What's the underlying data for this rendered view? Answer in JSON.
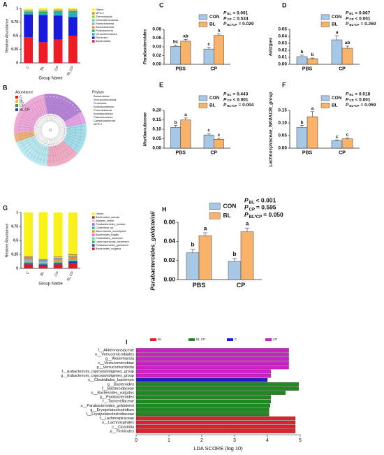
{
  "chart_data": [
    {
      "label": "A",
      "type": "stacked_bar",
      "ylabel": "Relative Abundance",
      "xlabel": "Group Name",
      "categories": [
        "C",
        "BL",
        "CP",
        "BL.CP"
      ],
      "ylim": [
        0,
        1
      ],
      "yticks": [
        0,
        0.25,
        0.5,
        0.75,
        1
      ],
      "series": [
        {
          "name": "Others",
          "color": "#f5f230",
          "values": [
            0.02,
            0.03,
            0.02,
            0.02
          ]
        },
        {
          "name": "MPS-2",
          "color": "#c99a1a",
          "values": [
            0.005,
            0.005,
            0.005,
            0.005
          ]
        },
        {
          "name": "Thermotogota",
          "color": "#9acd32",
          "values": [
            0.005,
            0.005,
            0.005,
            0.005
          ]
        },
        {
          "name": "Gemmatimonadota",
          "color": "#66cdaa",
          "values": [
            0.005,
            0.005,
            0.005,
            0.005
          ]
        },
        {
          "name": "Patescibacteria",
          "color": "#8fbc8f",
          "values": [
            0.01,
            0.01,
            0.01,
            0.01
          ]
        },
        {
          "name": "Acidobacteriota",
          "color": "#ff7f50",
          "values": [
            0.01,
            0.01,
            0.01,
            0.01
          ]
        },
        {
          "name": "Proteobacteria",
          "color": "#32b04a",
          "values": [
            0.02,
            0.03,
            0.02,
            0.03
          ]
        },
        {
          "name": "Verrucomicrobiota",
          "color": "#20b2c0",
          "values": [
            0.03,
            0.03,
            0.06,
            0.08
          ]
        },
        {
          "name": "Firmicutes",
          "color": "#1a1adb",
          "values": [
            0.42,
            0.5,
            0.44,
            0.34
          ]
        },
        {
          "name": "Bacteroidota",
          "color": "#ee1c25",
          "values": [
            0.47,
            0.38,
            0.43,
            0.5
          ]
        }
      ]
    },
    {
      "label": "B",
      "type": "cladogram",
      "legend_title": "Abundance",
      "groups": [
        {
          "name": "C",
          "color": "#e31a1c"
        },
        {
          "name": "BL",
          "color": "#f2c12e"
        },
        {
          "name": "CP",
          "color": "#33a02c"
        },
        {
          "name": "BL.CP",
          "color": "#1f3fbf"
        }
      ],
      "phylum_title": "Phylum",
      "phyla": [
        "Bacteroidota",
        "Verrucomicrobiota",
        "Firmicutes",
        "Actinobacteriota",
        "Proteobacteria",
        "Acidobacteriota",
        "Patescibacteria",
        "Campilobacterota",
        "MPS-2"
      ]
    },
    {
      "label": "C",
      "type": "grouped_bar",
      "ylabel": "Parabacteroides",
      "categories": [
        "PBS",
        "CP"
      ],
      "ylim": [
        0,
        0.08
      ],
      "yticks": [
        {
          "value": 0,
          "label": "0.00"
        },
        0.02,
        0.04,
        0.06,
        0.08
      ],
      "series": [
        {
          "name": "CON",
          "color": "#a7c7e7",
          "values": [
            0.041,
            0.035
          ],
          "errors": [
            0.003,
            0.004
          ],
          "letters": [
            "bc",
            "c"
          ]
        },
        {
          "name": "BL",
          "color": "#f8b26a",
          "values": [
            0.053,
            0.066
          ],
          "errors": [
            0.004,
            0.004
          ],
          "letters": [
            "ab",
            "a"
          ]
        }
      ],
      "stats": [
        {
          "symbol": "P",
          "sub": "BL",
          "text": "< 0.001"
        },
        {
          "symbol": "P",
          "sub": "CP",
          "text": "= 0.534"
        },
        {
          "symbol": "P",
          "sub": "BL*CP",
          "text": "= 0.029"
        }
      ]
    },
    {
      "label": "D",
      "type": "grouped_bar",
      "ylabel": "Alistipes",
      "categories": [
        "PBS",
        "CP"
      ],
      "ylim": [
        0,
        0.05
      ],
      "yticks": [
        {
          "value": 0,
          "label": "0.00"
        },
        0.01,
        0.02,
        0.03,
        0.04,
        0.05
      ],
      "series": [
        {
          "name": "CON",
          "color": "#a7c7e7",
          "values": [
            0.011,
            0.035
          ],
          "errors": [
            0.002,
            0.006
          ],
          "letters": [
            "b",
            "a"
          ]
        },
        {
          "name": "BL",
          "color": "#f8b26a",
          "values": [
            0.008,
            0.023
          ],
          "errors": [
            0.001,
            0.003
          ],
          "letters": [
            "b",
            "ab"
          ]
        }
      ],
      "stats": [
        {
          "symbol": "P",
          "sub": "BL",
          "text": "= 0.067"
        },
        {
          "symbol": "P",
          "sub": "CP",
          "text": "< 0.001"
        },
        {
          "symbol": "P",
          "sub": "BL*CP",
          "text": "= 0.259"
        }
      ]
    },
    {
      "label": "E",
      "type": "grouped_bar",
      "ylabel": "Muribaculaceae",
      "categories": [
        "PBS",
        "CP"
      ],
      "ylim": [
        0,
        0.2
      ],
      "yticks": [
        {
          "value": 0,
          "label": "0.00"
        },
        0.05,
        {
          "value": 0.1,
          "label": "0.10"
        },
        0.15,
        {
          "value": 0.2,
          "label": "0.20"
        }
      ],
      "series": [
        {
          "name": "CON",
          "color": "#a7c7e7",
          "values": [
            0.11,
            0.07
          ],
          "errors": [
            0.01,
            0.008
          ],
          "letters": [
            "b",
            "c"
          ]
        },
        {
          "name": "BL",
          "color": "#f8b26a",
          "values": [
            0.15,
            0.047
          ],
          "errors": [
            0.01,
            0.005
          ],
          "letters": [
            "a",
            "c"
          ]
        }
      ],
      "stats": [
        {
          "symbol": "P",
          "sub": "BL",
          "text": "= 0.443"
        },
        {
          "symbol": "P",
          "sub": "CP",
          "text": "< 0.001"
        },
        {
          "symbol": "P",
          "sub": "BL*CP",
          "text": "= 0.004"
        }
      ]
    },
    {
      "label": "F",
      "type": "grouped_bar",
      "ylabel": "Lachnospiraceae_NK4A136_group",
      "categories": [
        "PBS",
        "CP"
      ],
      "ylim": [
        0,
        0.15
      ],
      "yticks": [
        {
          "value": 0,
          "label": "0.00"
        },
        0.05,
        {
          "value": 0.1,
          "label": "0.10"
        },
        0.15
      ],
      "series": [
        {
          "name": "CON",
          "color": "#a7c7e7",
          "values": [
            0.082,
            0.03
          ],
          "errors": [
            0.008,
            0.003
          ],
          "letters": [
            "b",
            "c"
          ]
        },
        {
          "name": "BL",
          "color": "#f8b26a",
          "values": [
            0.125,
            0.037
          ],
          "errors": [
            0.02,
            0.004
          ],
          "letters": [
            "a",
            "c"
          ]
        }
      ],
      "stats": [
        {
          "symbol": "P",
          "sub": "BL",
          "text": "= 0.018"
        },
        {
          "symbol": "P",
          "sub": "CP",
          "text": "< 0.001"
        },
        {
          "symbol": "P",
          "sub": "BL*CP",
          "text": "= 0.059"
        }
      ]
    },
    {
      "label": "G",
      "type": "stacked_bar",
      "ylabel": "Relative Abundance",
      "xlabel": "Group Name",
      "categories": [
        "C",
        "BL",
        "CP",
        "BL.CP"
      ],
      "ylim": [
        0,
        1
      ],
      "yticks": [
        0,
        0.25,
        0.5,
        0.75,
        1
      ],
      "series": [
        {
          "name": "Others",
          "color": "#f7f21a",
          "values": [
            0.78,
            0.84,
            0.79,
            0.75
          ]
        },
        {
          "name": "Bacteroides_caccae",
          "color": "#8b4513",
          "values": [
            0.01,
            0.01,
            0.01,
            0.01
          ]
        },
        {
          "name": "Alistipes_shahii",
          "color": "#ffb6c1",
          "values": [
            0.01,
            0.005,
            0.01,
            0.01
          ]
        },
        {
          "name": "Parabacteroides_merdae",
          "color": "#9370db",
          "values": [
            0.01,
            0.01,
            0.01,
            0.01
          ]
        },
        {
          "name": "Clostridium_sp.",
          "color": "#20b2aa",
          "values": [
            0.01,
            0.01,
            0.01,
            0.01
          ]
        },
        {
          "name": "Akkermansia_muciniphila",
          "color": "#ff8c00",
          "values": [
            0.02,
            0.01,
            0.03,
            0.04
          ]
        },
        {
          "name": "Bacteroides_fragilis",
          "color": "#da70d6",
          "values": [
            0.02,
            0.01,
            0.01,
            0.02
          ]
        },
        {
          "name": "Clostridiales_bacterium",
          "color": "#66cdaa",
          "values": [
            0.03,
            0.02,
            0.02,
            0.01
          ]
        },
        {
          "name": "Lachnospiraceae_bacterium",
          "color": "#32b04a",
          "values": [
            0.02,
            0.02,
            0.02,
            0.01
          ]
        },
        {
          "name": "Parabacteroides_goldsteinii",
          "color": "#1f3fbf",
          "values": [
            0.02,
            0.03,
            0.02,
            0.04
          ]
        },
        {
          "name": "Bacteroides_vulgatus",
          "color": "#e31a1c",
          "values": [
            0.07,
            0.04,
            0.07,
            0.09
          ]
        }
      ]
    },
    {
      "label": "H",
      "type": "grouped_bar",
      "ylabel": "Parabacteroides_goldsteinii",
      "categories": [
        "PBS",
        "CP"
      ],
      "ylim": [
        0,
        0.06
      ],
      "yticks": [
        {
          "value": 0,
          "label": "0.00"
        },
        0.02,
        0.04,
        0.06
      ],
      "series": [
        {
          "name": "CON",
          "color": "#a7c7e7",
          "values": [
            0.028,
            0.019
          ],
          "errors": [
            0.004,
            0.003
          ],
          "letters": [
            "b",
            "b"
          ]
        },
        {
          "name": "BL",
          "color": "#f8b26a",
          "values": [
            0.046,
            0.05
          ],
          "errors": [
            0.003,
            0.004
          ],
          "letters": [
            "a",
            "a"
          ]
        }
      ],
      "stats": [
        {
          "symbol": "P",
          "sub": "BL",
          "text": "< 0.001"
        },
        {
          "symbol": "P",
          "sub": "CP",
          "text": "= 0.595"
        },
        {
          "symbol": "P",
          "sub": "BL*CP",
          "text": "= 0.050"
        }
      ]
    },
    {
      "label": "I",
      "type": "hbar",
      "xlabel": "LDA SCORE (log 10)",
      "xlim": [
        0,
        5
      ],
      "xticks": [
        0,
        1,
        2,
        3,
        4,
        5
      ],
      "categories": [
        "f__Akkermansiaceae",
        "o__Verrucomicrobiales",
        "g__Akkermansia",
        "c__Verrucomicrobiae",
        "p__Verrucomicrobiota",
        "f__Eubacterium_coprostanoligenes_group",
        "g__Eubacterium_coprostanoligenes_group",
        "s__Clostridiales_bacterium",
        "g__Bacteroides",
        "f__Bacteroidaceae",
        "s__Bacteroides_vulgatus",
        "g__Parabacteroides",
        "f__Tannerellaceae",
        "s__Parabacteroides_goldsteinii",
        "g__Erysipelatoclostridium",
        "f__Erysipelatoclostridiaceae",
        "f__Lachnospiraceae",
        "o__Lachnospirales",
        "c__Clostridia",
        "p__Firmicutes"
      ],
      "series": [
        {
          "name": "BL",
          "color": "#e0202a",
          "values": [
            null,
            null,
            null,
            null,
            null,
            null,
            null,
            null,
            null,
            null,
            null,
            null,
            null,
            null,
            null,
            null,
            4.85,
            4.85,
            4.85,
            4.85
          ]
        },
        {
          "name": "BL.CP",
          "color": "#1f8a1f",
          "values": [
            null,
            null,
            null,
            null,
            null,
            null,
            null,
            null,
            4.95,
            4.95,
            4.55,
            4.1,
            4.1,
            4.08,
            4.05,
            4.05,
            null,
            null,
            null,
            null
          ]
        },
        {
          "name": "C",
          "color": "#1a1adb",
          "values": [
            null,
            null,
            null,
            null,
            null,
            null,
            null,
            4.0,
            null,
            null,
            null,
            null,
            null,
            null,
            null,
            null,
            null,
            null,
            null,
            null
          ]
        },
        {
          "name": "CP",
          "color": "#d020c8",
          "values": [
            4.65,
            4.65,
            4.65,
            4.65,
            4.65,
            4.1,
            4.1,
            null,
            null,
            null,
            null,
            null,
            null,
            null,
            null,
            null,
            null,
            null,
            null,
            null
          ]
        }
      ]
    }
  ]
}
